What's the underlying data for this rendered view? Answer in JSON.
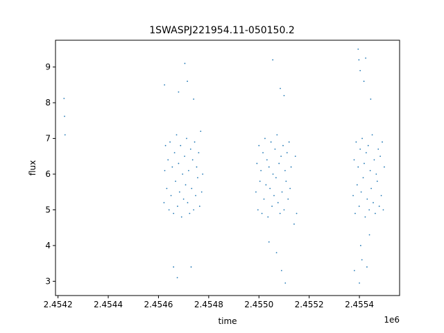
{
  "chart_data": {
    "type": "scatter",
    "title": "1SWASPJ221954.11-050150.2",
    "xlabel": "time",
    "ylabel": "flux",
    "x_offset_label": "1e6",
    "xlim": [
      2454190,
      2455560
    ],
    "ylim": [
      2.6,
      9.75
    ],
    "xticks": [
      {
        "value": 2454200,
        "label": "2.4542"
      },
      {
        "value": 2454400,
        "label": "2.4544"
      },
      {
        "value": 2454600,
        "label": "2.4546"
      },
      {
        "value": 2454800,
        "label": "2.4548"
      },
      {
        "value": 2455000,
        "label": "2.4550"
      },
      {
        "value": 2455200,
        "label": "2.4552"
      },
      {
        "value": 2455400,
        "label": "2.4554"
      }
    ],
    "yticks": [
      {
        "value": 3,
        "label": "3"
      },
      {
        "value": 4,
        "label": "4"
      },
      {
        "value": 5,
        "label": "5"
      },
      {
        "value": 6,
        "label": "6"
      },
      {
        "value": 7,
        "label": "7"
      },
      {
        "value": 8,
        "label": "8"
      },
      {
        "value": 9,
        "label": "9"
      }
    ],
    "grid": false,
    "marker_color": "#1f77b4",
    "series": [
      {
        "points": [
          [
            2454224,
            8.12
          ],
          [
            2454226,
            7.62
          ],
          [
            2454228,
            7.1
          ],
          [
            2454622,
            5.2
          ],
          [
            2454625,
            6.1
          ],
          [
            2454628,
            6.8
          ],
          [
            2454633,
            5.6
          ],
          [
            2454638,
            6.4
          ],
          [
            2454642,
            5.0
          ],
          [
            2454646,
            6.9
          ],
          [
            2454650,
            5.4
          ],
          [
            2454655,
            6.2
          ],
          [
            2454660,
            4.9
          ],
          [
            2454664,
            6.6
          ],
          [
            2454668,
            5.8
          ],
          [
            2454672,
            7.1
          ],
          [
            2454676,
            5.1
          ],
          [
            2454680,
            6.3
          ],
          [
            2454684,
            5.5
          ],
          [
            2454688,
            6.8
          ],
          [
            2454692,
            4.8
          ],
          [
            2454696,
            6.0
          ],
          [
            2454700,
            5.3
          ],
          [
            2454704,
            6.5
          ],
          [
            2454708,
            5.7
          ],
          [
            2454712,
            7.0
          ],
          [
            2454716,
            5.2
          ],
          [
            2454720,
            6.1
          ],
          [
            2454724,
            4.9
          ],
          [
            2454728,
            6.7
          ],
          [
            2454732,
            5.6
          ],
          [
            2454736,
            6.4
          ],
          [
            2454740,
            5.0
          ],
          [
            2454744,
            6.9
          ],
          [
            2454748,
            5.4
          ],
          [
            2454752,
            6.2
          ],
          [
            2454756,
            5.9
          ],
          [
            2454760,
            6.6
          ],
          [
            2454764,
            5.1
          ],
          [
            2454768,
            7.2
          ],
          [
            2454772,
            5.5
          ],
          [
            2454776,
            6.0
          ],
          [
            2454624,
            8.5
          ],
          [
            2454660,
            3.4
          ],
          [
            2454675,
            3.1
          ],
          [
            2454705,
            9.1
          ],
          [
            2454715,
            8.6
          ],
          [
            2454680,
            8.3
          ],
          [
            2454740,
            8.1
          ],
          [
            2454730,
            3.4
          ],
          [
            2454988,
            5.5
          ],
          [
            2454992,
            6.3
          ],
          [
            2454996,
            5.0
          ],
          [
            2455000,
            6.8
          ],
          [
            2455004,
            5.8
          ],
          [
            2455008,
            6.1
          ],
          [
            2455012,
            4.9
          ],
          [
            2455016,
            6.6
          ],
          [
            2455020,
            5.3
          ],
          [
            2455024,
            7.0
          ],
          [
            2455028,
            5.7
          ],
          [
            2455032,
            6.4
          ],
          [
            2455036,
            4.8
          ],
          [
            2455040,
            6.2
          ],
          [
            2455044,
            5.6
          ],
          [
            2455048,
            6.9
          ],
          [
            2455052,
            5.1
          ],
          [
            2455056,
            6.0
          ],
          [
            2455060,
            5.4
          ],
          [
            2455064,
            6.7
          ],
          [
            2455068,
            5.9
          ],
          [
            2455072,
            7.1
          ],
          [
            2455076,
            5.2
          ],
          [
            2455080,
            6.3
          ],
          [
            2455084,
            4.9
          ],
          [
            2455088,
            6.5
          ],
          [
            2455092,
            5.5
          ],
          [
            2455096,
            6.8
          ],
          [
            2455100,
            5.0
          ],
          [
            2455104,
            6.1
          ],
          [
            2455108,
            5.8
          ],
          [
            2455112,
            6.6
          ],
          [
            2455116,
            5.3
          ],
          [
            2455120,
            6.9
          ],
          [
            2455124,
            5.6
          ],
          [
            2455128,
            6.2
          ],
          [
            2455055,
            9.2
          ],
          [
            2455085,
            8.4
          ],
          [
            2455100,
            8.2
          ],
          [
            2455070,
            3.8
          ],
          [
            2455090,
            3.3
          ],
          [
            2455105,
            2.95
          ],
          [
            2455040,
            4.1
          ],
          [
            2455150,
            4.9
          ],
          [
            2455145,
            6.5
          ],
          [
            2455140,
            4.6
          ],
          [
            2455375,
            5.4
          ],
          [
            2455379,
            6.4
          ],
          [
            2455383,
            4.9
          ],
          [
            2455387,
            6.9
          ],
          [
            2455391,
            5.7
          ],
          [
            2455395,
            6.2
          ],
          [
            2455399,
            5.1
          ],
          [
            2455403,
            6.7
          ],
          [
            2455407,
            5.5
          ],
          [
            2455411,
            7.0
          ],
          [
            2455415,
            5.9
          ],
          [
            2455419,
            6.3
          ],
          [
            2455423,
            4.8
          ],
          [
            2455427,
            6.6
          ],
          [
            2455431,
            5.3
          ],
          [
            2455435,
            6.8
          ],
          [
            2455439,
            5.0
          ],
          [
            2455443,
            6.1
          ],
          [
            2455447,
            5.6
          ],
          [
            2455451,
            7.1
          ],
          [
            2455455,
            5.2
          ],
          [
            2455459,
            6.4
          ],
          [
            2455463,
            4.9
          ],
          [
            2455467,
            6.0
          ],
          [
            2455471,
            5.8
          ],
          [
            2455475,
            6.7
          ],
          [
            2455479,
            5.1
          ],
          [
            2455483,
            6.5
          ],
          [
            2455487,
            5.4
          ],
          [
            2455491,
            6.9
          ],
          [
            2455495,
            5.0
          ],
          [
            2455499,
            6.2
          ],
          [
            2455395,
            9.5
          ],
          [
            2455398,
            9.2
          ],
          [
            2455403,
            8.9
          ],
          [
            2455425,
            9.25
          ],
          [
            2455418,
            8.6
          ],
          [
            2455445,
            8.1
          ],
          [
            2455405,
            4.0
          ],
          [
            2455410,
            3.6
          ],
          [
            2455430,
            3.4
          ],
          [
            2455400,
            2.95
          ],
          [
            2455380,
            3.3
          ],
          [
            2455440,
            4.3
          ]
        ]
      }
    ]
  }
}
